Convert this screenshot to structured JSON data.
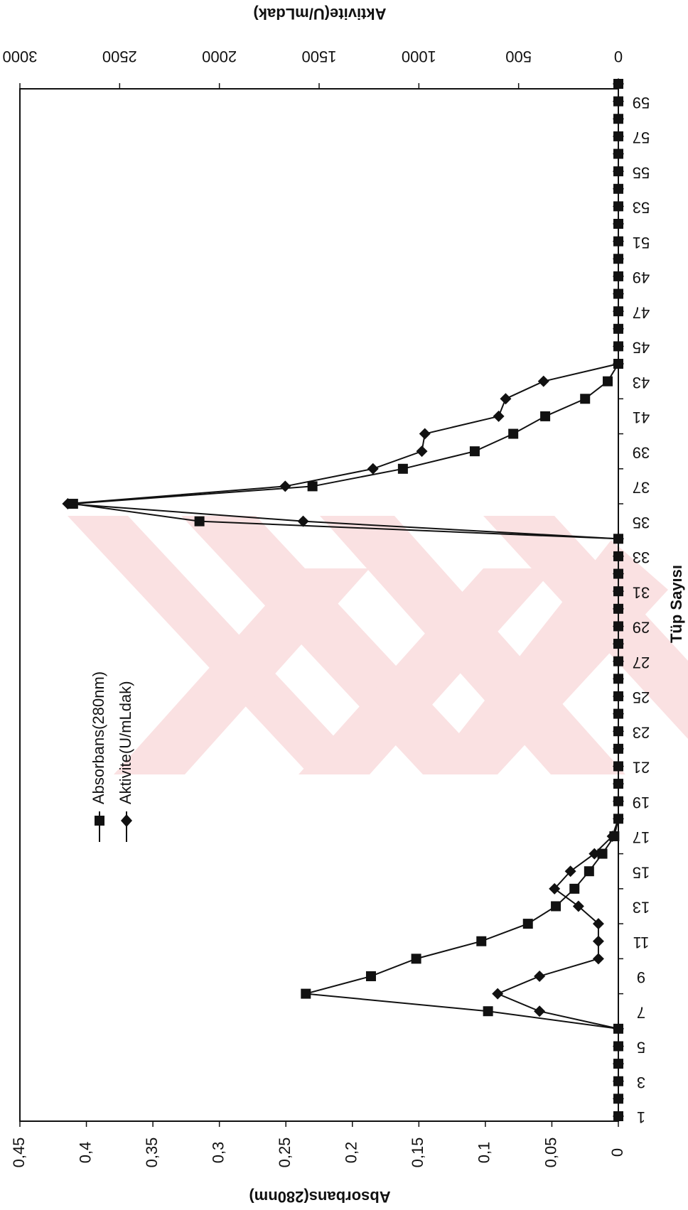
{
  "chart_data": {
    "type": "line",
    "xlabel": "Tüp Sayısı",
    "ylabel_left": "Absorbans(280nm)",
    "ylabel_right": "Aktivite(U/mLdak)",
    "x_ticks": [
      "1",
      "3",
      "5",
      "7",
      "9",
      "11",
      "13",
      "15",
      "17",
      "19",
      "21",
      "23",
      "25",
      "27",
      "29",
      "31",
      "33",
      "35",
      "37",
      "39",
      "41",
      "43",
      "45",
      "47",
      "49",
      "51",
      "53",
      "55",
      "57",
      "59"
    ],
    "y_left_ticks": [
      "0",
      "0,05",
      "0,1",
      "0,15",
      "0,2",
      "0,25",
      "0,3",
      "0,35",
      "0,4",
      "0,45"
    ],
    "y_right_ticks": [
      "0",
      "500",
      "1000",
      "1500",
      "2000",
      "2500",
      "3000"
    ],
    "ylim_left": [
      0,
      0.45
    ],
    "ylim_right": [
      0,
      3000
    ],
    "xlim": [
      1,
      60
    ],
    "grid": false,
    "legend_position": "top-left",
    "colors": {
      "line": "#111111",
      "watermark": "#f6c9cc"
    },
    "series": [
      {
        "name": "Absorbans(280nm)",
        "marker": "square",
        "axis": "left",
        "x": [
          1,
          2,
          3,
          4,
          5,
          6,
          7,
          8,
          9,
          10,
          11,
          12,
          13,
          14,
          15,
          16,
          17,
          18,
          19,
          20,
          21,
          22,
          23,
          24,
          25,
          26,
          27,
          28,
          29,
          30,
          31,
          32,
          33,
          34,
          35,
          36,
          37,
          38,
          39,
          40,
          41,
          42,
          43,
          44,
          45,
          46,
          47,
          48,
          49,
          50,
          51,
          52,
          53,
          54,
          55,
          56,
          57,
          58,
          59,
          60
        ],
        "values": [
          0,
          0,
          0,
          0,
          0,
          0,
          0.098,
          0.235,
          0.186,
          0.152,
          0.103,
          0.068,
          0.047,
          0.033,
          0.022,
          0.012,
          0.003,
          0,
          0,
          0,
          0,
          0,
          0,
          0,
          0,
          0,
          0,
          0,
          0,
          0,
          0,
          0,
          0,
          0,
          0.315,
          0.41,
          0.23,
          0.162,
          0.108,
          0.079,
          0.055,
          0.025,
          0.008,
          0,
          0,
          0,
          0,
          0,
          0,
          0,
          0,
          0,
          0,
          0,
          0,
          0,
          0,
          0,
          0,
          0
        ]
      },
      {
        "name": "Aktivite(U/mLdak)",
        "marker": "diamond",
        "axis": "right",
        "x": [
          1,
          2,
          3,
          4,
          5,
          6,
          7,
          8,
          9,
          10,
          11,
          12,
          13,
          14,
          15,
          16,
          17,
          18,
          19,
          20,
          21,
          22,
          23,
          24,
          25,
          26,
          27,
          28,
          29,
          30,
          31,
          32,
          33,
          34,
          35,
          36,
          37,
          38,
          39,
          40,
          41,
          42,
          43,
          44,
          45,
          46,
          47,
          48,
          49,
          50,
          51,
          52,
          53,
          54,
          55,
          56,
          57,
          58,
          59,
          60
        ],
        "values": [
          0,
          0,
          0,
          0,
          0,
          0,
          395,
          605,
          395,
          100,
          100,
          100,
          200,
          320,
          240,
          120,
          30,
          0,
          0,
          0,
          0,
          0,
          0,
          0,
          0,
          0,
          0,
          0,
          0,
          0,
          0,
          0,
          0,
          0,
          1580,
          2760,
          1670,
          1230,
          985,
          970,
          600,
          565,
          375,
          0,
          0,
          0,
          0,
          0,
          0,
          0,
          0,
          0,
          0,
          0,
          0,
          0,
          0,
          0,
          0,
          0
        ]
      }
    ]
  }
}
